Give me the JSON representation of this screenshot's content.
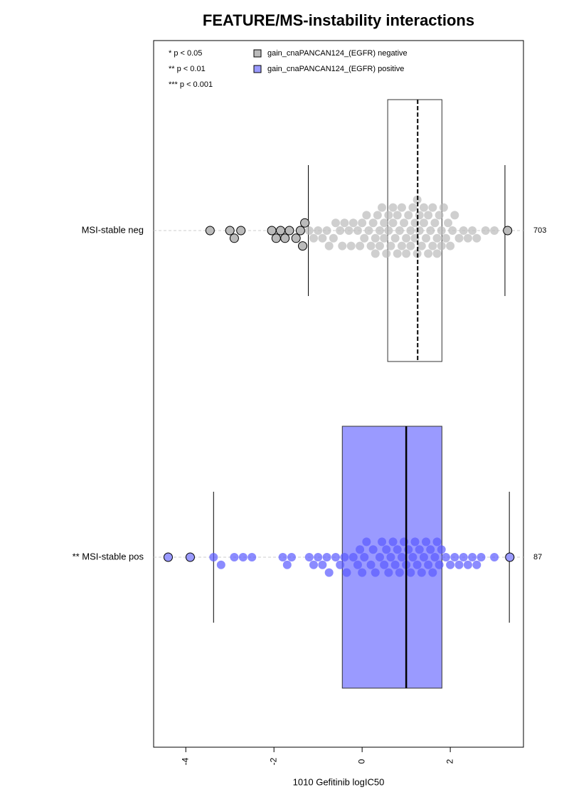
{
  "chart_data": {
    "type": "boxplot",
    "title": "FEATURE/MS-instability interactions",
    "xlabel": "1010 Gefitinib logIC50",
    "categories": [
      "MSI-stable neg",
      "** MSI-stable pos"
    ],
    "counts": [
      703,
      87
    ],
    "notes": [
      "* p < 0.05",
      "** p < 0.01",
      "*** p < 0.001"
    ],
    "xlim": [
      -4.73,
      3.66
    ],
    "xticks": [
      -4,
      -2,
      0,
      2
    ],
    "series": [
      {
        "name": "gain_cnaPANCAN124_(EGFR) negative",
        "color": "#bbbbbb",
        "box_fill": "none",
        "point_color": "#bbbbbb",
        "whisker_low": -1.22,
        "q1": 0.58,
        "median": 1.26,
        "q3": 1.81,
        "whisker_high": 3.24,
        "points": [
          -3.45,
          -3.0,
          -2.9,
          -2.75,
          -2.05,
          -1.95,
          -1.85,
          -1.75,
          -1.65,
          -1.5,
          -1.4,
          -1.35,
          -1.3,
          -1.2,
          -1.1,
          -1.0,
          -0.9,
          -0.8,
          -0.75,
          -0.65,
          -0.6,
          -0.5,
          -0.45,
          -0.4,
          -0.3,
          -0.25,
          -0.2,
          -0.1,
          -0.05,
          0,
          0.05,
          0.1,
          0.15,
          0.2,
          0.25,
          0.3,
          0.3,
          0.35,
          0.4,
          0.4,
          0.45,
          0.5,
          0.5,
          0.55,
          0.6,
          0.6,
          0.65,
          0.7,
          0.7,
          0.75,
          0.8,
          0.8,
          0.85,
          0.9,
          0.9,
          0.95,
          1,
          1,
          1.05,
          1.1,
          1.1,
          1.15,
          1.2,
          1.2,
          1.25,
          1.25,
          1.3,
          1.3,
          1.35,
          1.4,
          1.4,
          1.45,
          1.5,
          1.5,
          1.55,
          1.6,
          1.6,
          1.65,
          1.7,
          1.7,
          1.75,
          1.8,
          1.8,
          1.85,
          1.9,
          1.95,
          2,
          2.05,
          2.1,
          2.2,
          2.3,
          2.4,
          2.5,
          2.6,
          2.8,
          3.0,
          3.3
        ]
      },
      {
        "name": "gain_cnaPANCAN124_(EGFR) positive",
        "color": "#9a9aff",
        "box_fill": "#9a9aff",
        "point_color": "#5a5aff",
        "whisker_low": -3.37,
        "q1": -0.45,
        "median": 1.0,
        "q3": 1.81,
        "whisker_high": 3.34,
        "points": [
          -4.4,
          -3.9,
          -3.37,
          -3.2,
          -2.9,
          -2.7,
          -2.5,
          -1.8,
          -1.7,
          -1.6,
          -1.2,
          -1.1,
          -1.0,
          -0.9,
          -0.8,
          -0.75,
          -0.6,
          -0.5,
          -0.4,
          -0.35,
          -0.2,
          -0.1,
          -0.05,
          0,
          0.05,
          0.1,
          0.2,
          0.25,
          0.3,
          0.4,
          0.45,
          0.5,
          0.55,
          0.6,
          0.65,
          0.7,
          0.75,
          0.8,
          0.85,
          0.9,
          0.95,
          1,
          1.05,
          1.1,
          1.15,
          1.2,
          1.25,
          1.3,
          1.35,
          1.4,
          1.45,
          1.5,
          1.55,
          1.6,
          1.65,
          1.7,
          1.75,
          1.8,
          1.9,
          2,
          2.1,
          2.2,
          2.3,
          2.4,
          2.5,
          2.6,
          2.7,
          3,
          3.35
        ]
      }
    ]
  }
}
